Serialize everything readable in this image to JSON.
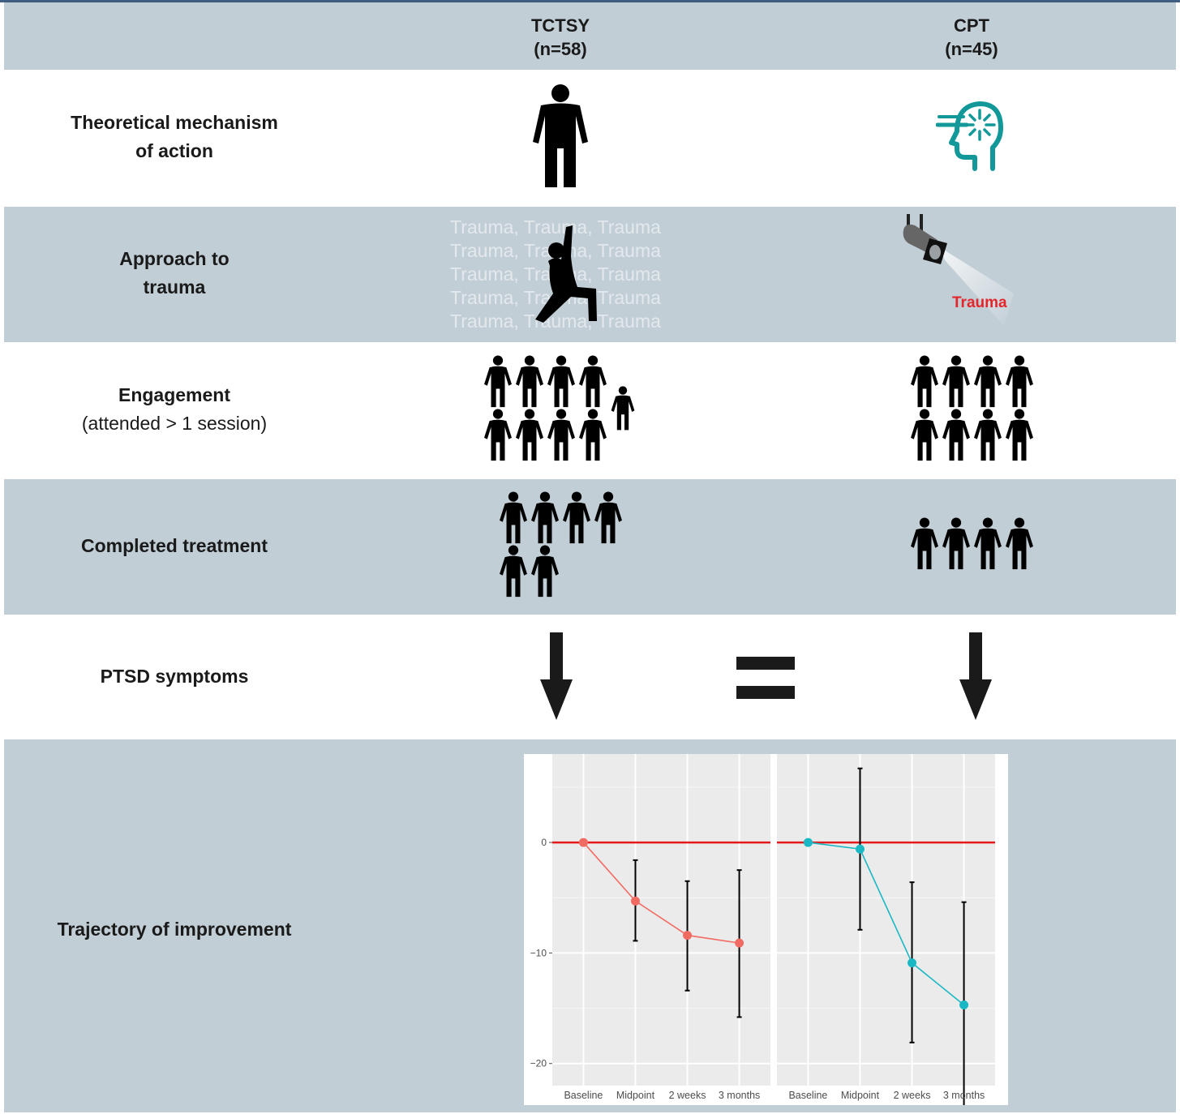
{
  "columns": {
    "tctsy": {
      "name": "TCTSY",
      "n": "(n=58)"
    },
    "cpt": {
      "name": "CPT",
      "n": "(n=45)"
    }
  },
  "rows": {
    "mechanism": {
      "line1": "Theoretical mechanism",
      "line2": "of action"
    },
    "approach": {
      "line1": "Approach to",
      "line2": "trauma"
    },
    "engagement": {
      "line1": "Engagement",
      "line2": "(attended > 1 session)"
    },
    "completed": {
      "line1": "Completed treatment"
    },
    "ptsd": {
      "line1": "PTSD symptoms"
    },
    "trajectory": {
      "line1": "Trajectory of improvement"
    }
  },
  "approach_visuals": {
    "tctsy_background_lines": [
      "Trauma, Trauma, Trauma",
      "Trauma, Trauma, Trauma",
      "Trauma, Trauma, Trauma",
      "Trauma, Trauma, Trauma",
      "Trauma, Trauma, Trauma"
    ],
    "cpt_spotlight_label": "Trauma"
  },
  "icon_counts": {
    "engagement_tctsy_full": 8,
    "engagement_tctsy_partial": 1,
    "engagement_cpt": 8,
    "completed_tctsy": 6,
    "completed_cpt": 4
  },
  "ptsd_comparison": {
    "tctsy": "decrease",
    "relation": "equal",
    "cpt": "decrease"
  },
  "colors": {
    "band": "#c2ced6",
    "tctsy_series": "#f26b63",
    "cpt_series": "#1ab8c4",
    "reference_line": "#e31a1c",
    "cpt_icon": "#13989a",
    "trauma_label": "#e3262b"
  },
  "chart_data": [
    {
      "type": "line",
      "x": [
        "Baseline",
        "Midpoint",
        "2 weeks",
        "3 months"
      ],
      "y": [
        0,
        -5.3,
        -8.4,
        -9.1
      ],
      "error_low": [
        0,
        -8.9,
        -13.4,
        -15.8
      ],
      "error_high": [
        0,
        -1.6,
        -3.5,
        -2.5
      ],
      "color": "#f26b63",
      "ylim": [
        -22,
        8
      ],
      "yticks": [
        0,
        -10,
        -20
      ],
      "reference_y": 0,
      "grid": true
    },
    {
      "type": "line",
      "x": [
        "Baseline",
        "Midpoint",
        "2 weeks",
        "3 months"
      ],
      "y": [
        0,
        -0.6,
        -10.9,
        -14.7
      ],
      "error_low": [
        0,
        -7.9,
        -18.1,
        -24.1
      ],
      "error_high": [
        0,
        6.7,
        -3.6,
        -5.4
      ],
      "color": "#1ab8c4",
      "ylim": [
        -22,
        8
      ],
      "yticks": [
        0,
        -10,
        -20
      ],
      "reference_y": 0,
      "grid": true
    }
  ]
}
